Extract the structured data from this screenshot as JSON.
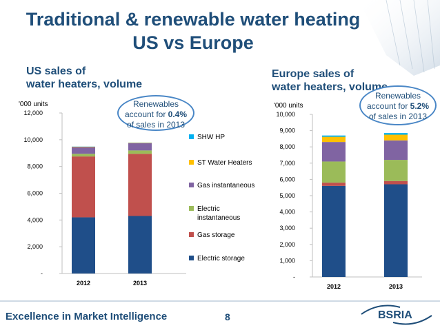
{
  "title_line1": "Traditional & renewable water heating",
  "title_line2": "US vs Europe",
  "footer_text": "Excellence in Market Intelligence",
  "page_number": "8",
  "logo_text": "BSRIA",
  "colors": {
    "accent": "#1f4e79",
    "callout_border": "#4a87c6",
    "Electric storage": "#1f4e89",
    "Gas storage": "#c0504d",
    "Electric instantaneous": "#9bbb59",
    "Gas instantaneous": "#8064a2",
    "ST Water Heaters": "#ffc000",
    "SHW HP": "#00b0f0"
  },
  "legend_labels": [
    "SHW HP",
    "ST Water Heaters",
    "Gas instantaneous",
    "Electric instantaneous",
    "Gas storage",
    "Electric storage"
  ],
  "callouts": {
    "us": {
      "line1": "Renewables",
      "line2_pre": "account for ",
      "line2_bold": "0.4%",
      "line3": "of sales in 2013"
    },
    "eu": {
      "line1": "Renewables",
      "line2_pre": "account for ",
      "line2_bold": "5.2%",
      "line3": "of sales in 2013"
    }
  },
  "chart_data": [
    {
      "type": "bar",
      "stacked": true,
      "title": "US sales of water heaters, volume",
      "title_line1": "US sales of",
      "title_line2": "water heaters, volume",
      "unit_label": "'000 units",
      "categories": [
        "2012",
        "2013"
      ],
      "ylim": [
        0,
        12000
      ],
      "yticks": [
        "-",
        "2,000",
        "4,000",
        "6,000",
        "8,000",
        "10,000",
        "12,000"
      ],
      "series": [
        {
          "name": "Electric storage",
          "values": [
            4200,
            4300
          ]
        },
        {
          "name": "Gas storage",
          "values": [
            4550,
            4650
          ]
        },
        {
          "name": "Electric instantaneous",
          "values": [
            200,
            250
          ]
        },
        {
          "name": "Gas instantaneous",
          "values": [
            500,
            550
          ]
        },
        {
          "name": "ST Water Heaters",
          "values": [
            30,
            30
          ]
        },
        {
          "name": "SHW HP",
          "values": [
            10,
            10
          ]
        }
      ]
    },
    {
      "type": "bar",
      "stacked": true,
      "title": "Europe sales of water heaters, volume",
      "title_line1": "Europe sales of",
      "title_line2": "water heaters, volume",
      "unit_label": "'000 units",
      "categories": [
        "2012",
        "2013"
      ],
      "ylim": [
        0,
        10000
      ],
      "yticks": [
        "-",
        "1,000",
        "2,000",
        "3,000",
        "4,000",
        "5,000",
        "6,000",
        "7,000",
        "8,000",
        "9,000",
        "10,000"
      ],
      "series": [
        {
          "name": "Electric storage",
          "values": [
            5600,
            5700
          ]
        },
        {
          "name": "Gas storage",
          "values": [
            200,
            200
          ]
        },
        {
          "name": "Electric instantaneous",
          "values": [
            1300,
            1300
          ]
        },
        {
          "name": "Gas instantaneous",
          "values": [
            1200,
            1200
          ]
        },
        {
          "name": "ST Water Heaters",
          "values": [
            320,
            350
          ]
        },
        {
          "name": "SHW HP",
          "values": [
            80,
            100
          ]
        }
      ]
    }
  ]
}
